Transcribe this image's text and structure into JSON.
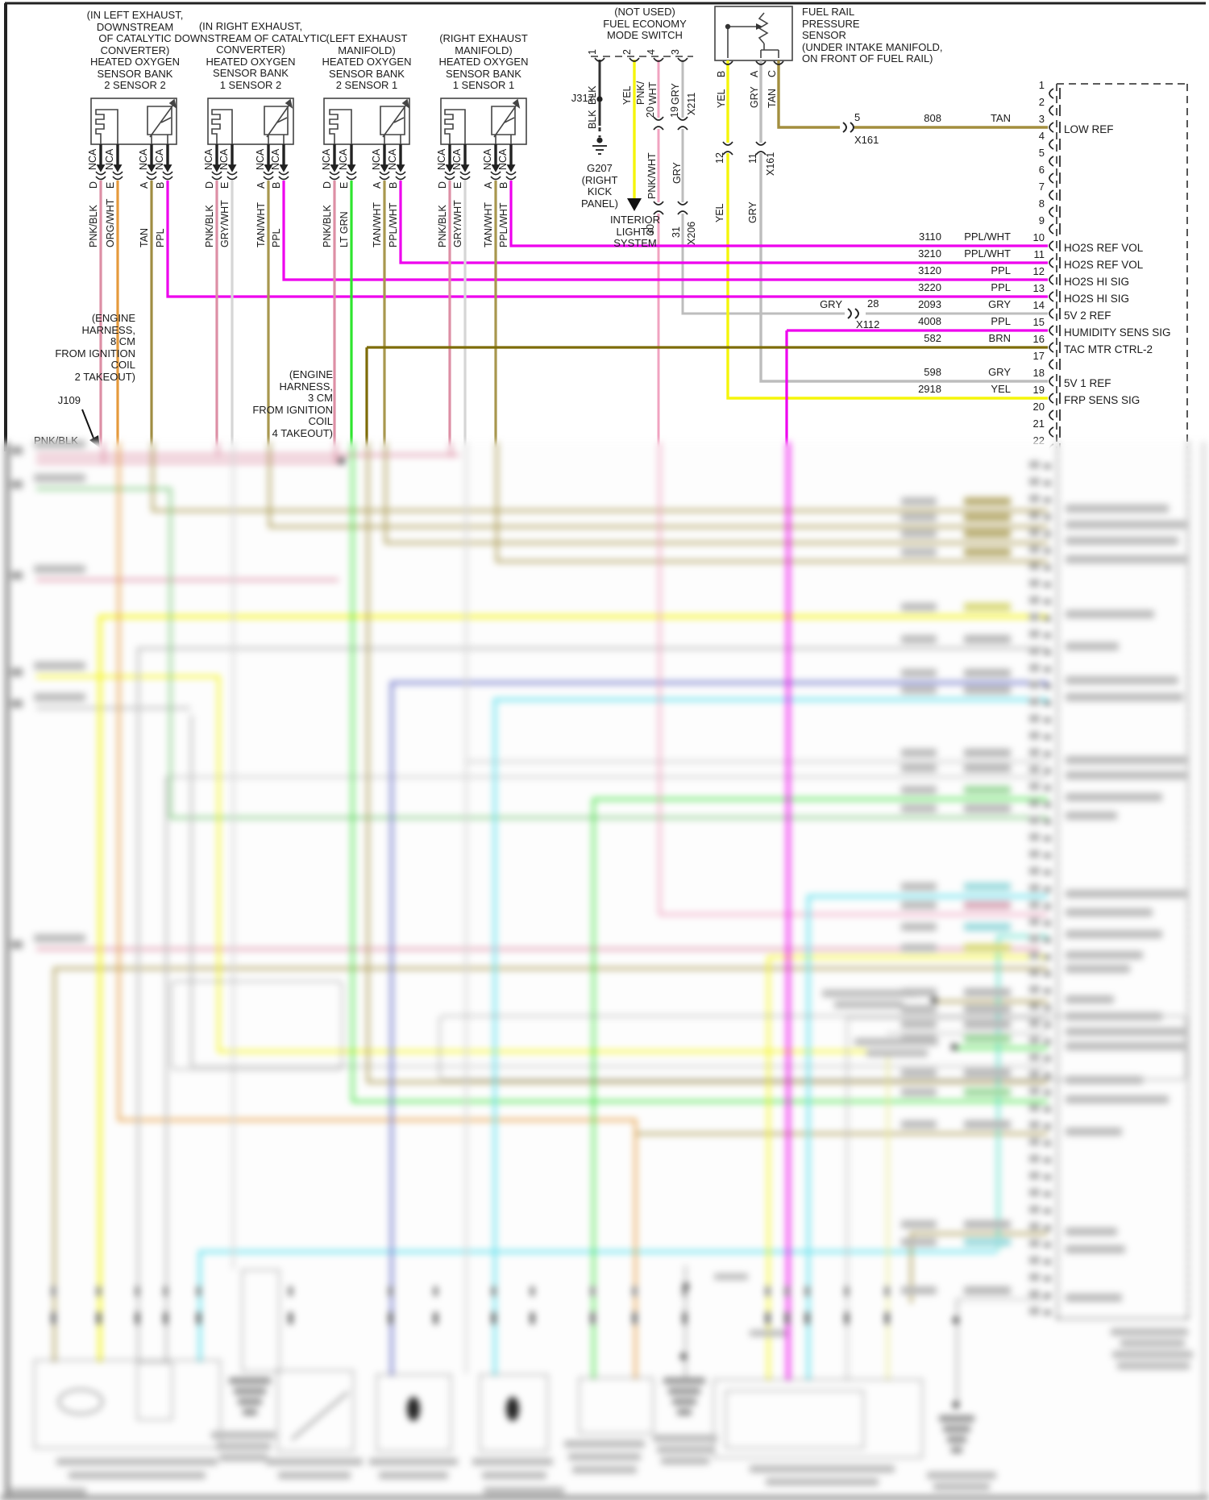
{
  "page": {
    "background": "#ffffff"
  },
  "wire_colors": {
    "PNK/BLK": "#dd8fa5",
    "ORG/WHT": "#e59a3c",
    "TAN": "#9f8d42",
    "TAN/WHT": "#a8974e",
    "PPL": "#ee00ee",
    "PPL/WHT": "#ee00ee",
    "GRY/WHT": "#d6d6d6",
    "LT GRN": "#2ee52e",
    "YEL": "#f5f50a",
    "GRY": "#bdbdbd",
    "PNK/WHT": "#f0a3c0",
    "BRN": "#7d6c08",
    "BLK": "#333333"
  },
  "nca_label": "NCA",
  "sensors": [
    {
      "title_lines": [
        "(IN LEFT EXHAUST,",
        "DOWNSTREAM",
        "OF CATALYTIC",
        "CONVERTER)",
        "HEATED OXYGEN",
        "SENSOR BANK",
        "2 SENSOR 2"
      ],
      "wires": [
        {
          "terminal": "D",
          "color": "PNK/BLK"
        },
        {
          "terminal": "E",
          "color": "ORG/WHT"
        },
        {
          "terminal": "A",
          "color": "TAN"
        },
        {
          "terminal": "B",
          "color": "PPL"
        }
      ]
    },
    {
      "title_lines": [
        "(IN RIGHT EXHAUST,",
        "DOWNSTREAM OF CATALYTIC",
        "CONVERTER)",
        "HEATED OXYGEN",
        "SENSOR BANK",
        "1 SENSOR 2"
      ],
      "wires": [
        {
          "terminal": "D",
          "color": "PNK/BLK"
        },
        {
          "terminal": "E",
          "color": "GRY/WHT"
        },
        {
          "terminal": "A",
          "color": "TAN/WHT"
        },
        {
          "terminal": "B",
          "color": "PPL"
        }
      ]
    },
    {
      "title_lines": [
        "(LEFT EXHAUST",
        "MANIFOLD)",
        "HEATED OXYGEN",
        "SENSOR BANK",
        "2 SENSOR 1"
      ],
      "wires": [
        {
          "terminal": "D",
          "color": "PNK/BLK"
        },
        {
          "terminal": "E",
          "color": "LT GRN"
        },
        {
          "terminal": "A",
          "color": "TAN/WHT"
        },
        {
          "terminal": "B",
          "color": "PPL/WHT"
        }
      ]
    },
    {
      "title_lines": [
        "(RIGHT EXHAUST",
        "MANIFOLD)",
        "HEATED OXYGEN",
        "SENSOR BANK",
        "1 SENSOR 1"
      ],
      "wires": [
        {
          "terminal": "D",
          "color": "PNK/BLK"
        },
        {
          "terminal": "E",
          "color": "GRY/WHT"
        },
        {
          "terminal": "A",
          "color": "TAN/WHT"
        },
        {
          "terminal": "B",
          "color": "PPL/WHT"
        }
      ]
    }
  ],
  "mode_switch": {
    "title_lines": [
      "(NOT USED)",
      "FUEL ECONOMY",
      "MODE SWITCH"
    ],
    "pins": [
      {
        "num": "1",
        "color": "BLK"
      },
      {
        "num": "2",
        "color": "YEL"
      },
      {
        "num": "4",
        "color": "PNK/WHT"
      },
      {
        "num": "3",
        "color": "GRY"
      }
    ],
    "j317": "J317",
    "blk_lower": "BLK"
  },
  "g207_lines": [
    "G207",
    "(RIGHT",
    "KICK",
    "PANEL)"
  ],
  "interior_lights_lines": [
    "INTERIOR",
    "LIGHTS",
    "SYSTEM"
  ],
  "fuel_rail": {
    "label_lines": [
      "FUEL RAIL",
      "PRESSURE",
      "SENSOR",
      "(UNDER INTAKE MANIFOLD,",
      "ON FRONT OF FUEL RAIL)"
    ],
    "pins": [
      {
        "terminal": "B",
        "color": "YEL"
      },
      {
        "terminal": "A",
        "color": "GRY"
      },
      {
        "terminal": "C",
        "color": "TAN"
      }
    ]
  },
  "inline_connectors": {
    "x161_a": {
      "pin": "5",
      "id": "X161"
    },
    "x161_b": {
      "id": "X161",
      "pins": [
        "12",
        "11"
      ],
      "colors": [
        "YEL",
        "GRY"
      ]
    },
    "x211": {
      "id": "X211",
      "pins": [
        "20",
        "19"
      ]
    },
    "x206": {
      "id": "X206",
      "pins": [
        "30",
        "31"
      ],
      "colors": [
        "PNK/WHT",
        "GRY"
      ]
    },
    "x112": {
      "id": "X112",
      "pin": "28",
      "color": "GRY"
    }
  },
  "notes": {
    "left_lines": [
      "(ENGINE",
      "HARNESS,",
      "8 CM",
      "FROM IGNITION",
      "COIL",
      "2 TAKEOUT)"
    ],
    "right_lines": [
      "(ENGINE",
      "HARNESS,",
      "3 CM",
      "FROM IGNITION",
      "COIL",
      "4 TAKEOUT)"
    ],
    "j109": "J109",
    "j109_wire": "PNK/BLK"
  },
  "ecm": {
    "pins": [
      {
        "n": "1"
      },
      {
        "n": "2"
      },
      {
        "n": "3",
        "circuit": "808",
        "color": "TAN",
        "signal": "LOW REF"
      },
      {
        "n": "4"
      },
      {
        "n": "5"
      },
      {
        "n": "6"
      },
      {
        "n": "7"
      },
      {
        "n": "8"
      },
      {
        "n": "9"
      },
      {
        "n": "10",
        "circuit": "3110",
        "color": "PPL/WHT",
        "signal": "HO2S REF VOL"
      },
      {
        "n": "11",
        "circuit": "3210",
        "color": "PPL/WHT",
        "signal": "HO2S REF VOL"
      },
      {
        "n": "12",
        "circuit": "3120",
        "color": "PPL",
        "signal": "HO2S HI SIG"
      },
      {
        "n": "13",
        "circuit": "3220",
        "color": "PPL",
        "signal": "HO2S HI SIG"
      },
      {
        "n": "14",
        "circuit": "2093",
        "color": "GRY",
        "signal": "5V 2 REF"
      },
      {
        "n": "15",
        "circuit": "4008",
        "color": "PPL",
        "signal": "HUMIDITY SENS SIG"
      },
      {
        "n": "16",
        "circuit": "582",
        "color": "BRN",
        "signal": "TAC MTR CTRL-2"
      },
      {
        "n": "17"
      },
      {
        "n": "18",
        "circuit": "598",
        "color": "GRY",
        "signal": "5V 1 REF"
      },
      {
        "n": "19",
        "circuit": "2918",
        "color": "YEL",
        "signal": "FRP SENS SIG"
      },
      {
        "n": "20"
      },
      {
        "n": "21"
      },
      {
        "n": "22"
      }
    ]
  }
}
